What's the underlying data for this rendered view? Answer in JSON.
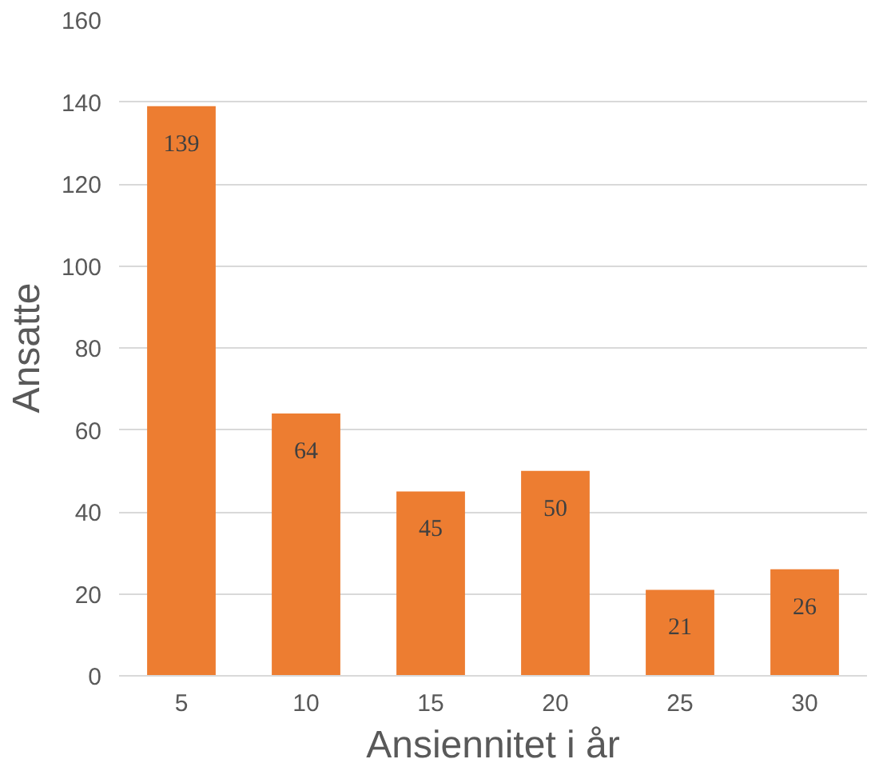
{
  "chart_data": {
    "type": "bar",
    "xlabel": "Ansiennitet i år",
    "ylabel": "Ansatte",
    "categories": [
      "5",
      "10",
      "15",
      "20",
      "25",
      "30"
    ],
    "values": [
      139,
      64,
      45,
      50,
      21,
      26
    ],
    "color": "#ed7d31",
    "ylim": [
      0,
      160
    ],
    "yticks": [
      0,
      20,
      40,
      60,
      80,
      100,
      120,
      140,
      160
    ],
    "grid": "y",
    "data_labels": true
  }
}
